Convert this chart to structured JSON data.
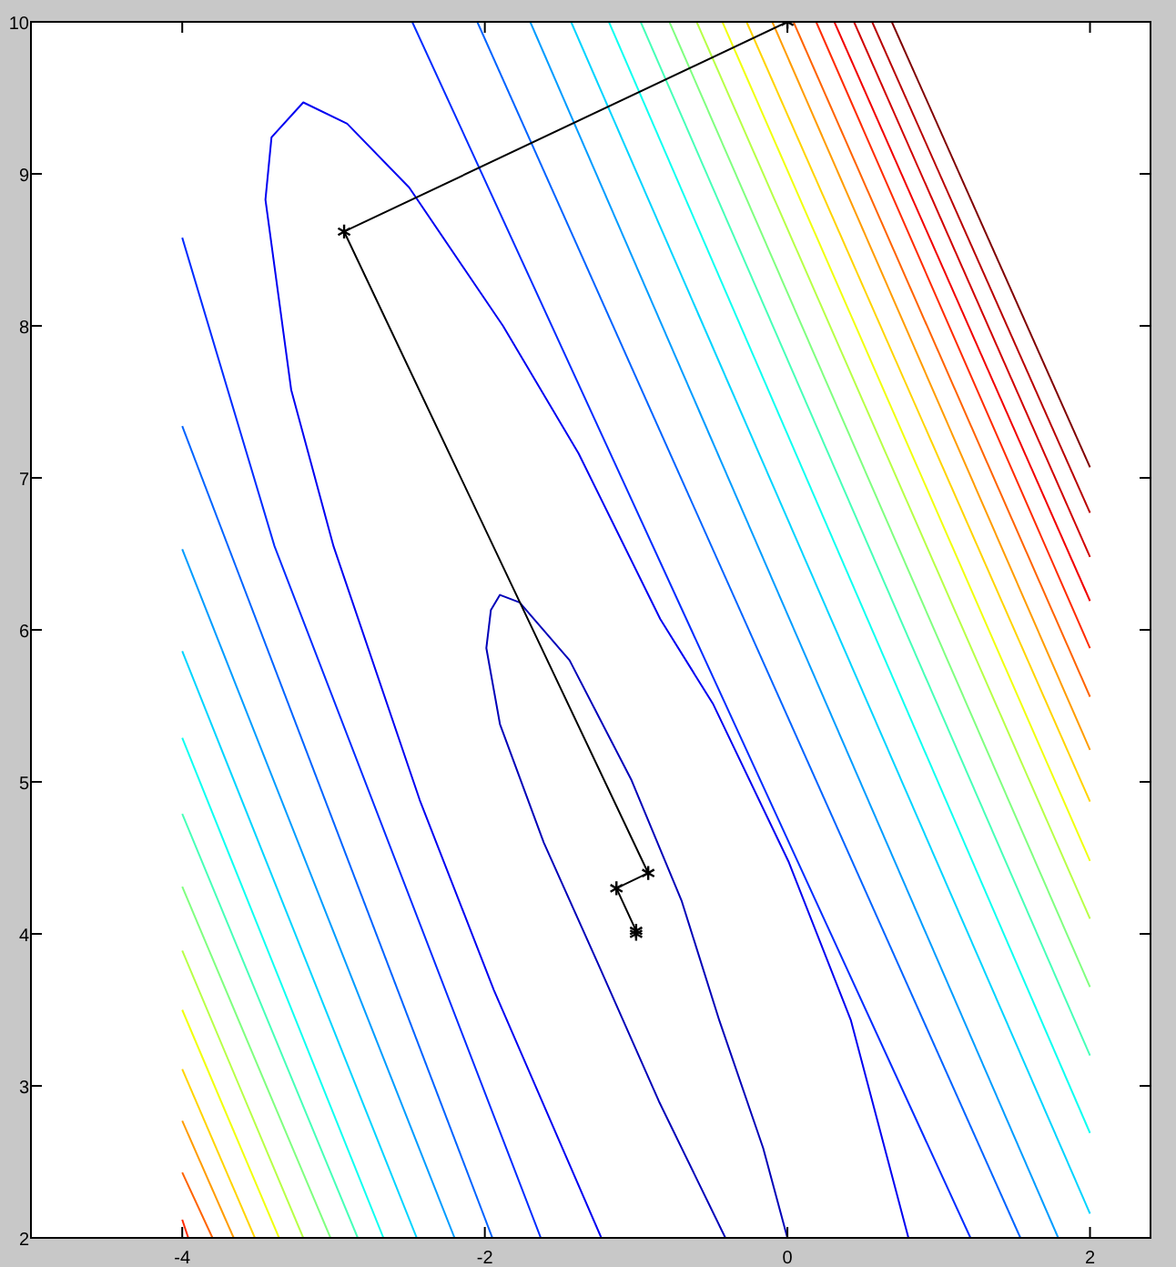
{
  "chart_data": {
    "type": "line",
    "xlim": [
      -5,
      2.4
    ],
    "ylim": [
      2,
      10
    ],
    "xticks": [
      -4,
      -2,
      0,
      2
    ],
    "yticks": [
      2,
      3,
      4,
      5,
      6,
      7,
      8,
      9,
      10
    ],
    "grid": false,
    "series": [
      {
        "color": "#0000b8",
        "marker": "none",
        "x": [
          -0.41,
          -0.85,
          -1.25,
          -1.61,
          -1.9,
          -1.99,
          -1.96,
          -1.9,
          -1.77,
          -1.44,
          -1.03,
          -0.7,
          -0.45,
          -0.16,
          0
        ],
        "values": [
          2,
          2.9,
          3.8,
          4.6,
          5.38,
          5.88,
          6.13,
          6.23,
          6.18,
          5.8,
          5.01,
          4.22,
          3.43,
          2.59,
          2
        ]
      },
      {
        "color": "#0000f1",
        "marker": "none",
        "x": [
          -1.23,
          -1.94,
          -2.43,
          -3.0,
          -3.28,
          -3.45,
          -3.41,
          -3.2,
          -2.91,
          -2.5,
          -1.88,
          -1.38,
          -0.84,
          -0.49,
          0.01,
          0.42,
          0.8
        ],
        "values": [
          2,
          3.63,
          4.88,
          6.55,
          7.58,
          8.83,
          9.24,
          9.47,
          9.33,
          8.91,
          8.0,
          7.16,
          6.07,
          5.51,
          4.47,
          3.43,
          2
        ]
      },
      {
        "color": "#002bff",
        "marker": "none",
        "x": [
          -4,
          -3.39,
          -1.63
        ],
        "values": [
          8.58,
          6.55,
          2
        ]
      },
      {
        "color": "#0063ff",
        "marker": "none",
        "x": [
          -4,
          -1.95
        ],
        "values": [
          7.34,
          2
        ]
      },
      {
        "color": "#009cff",
        "marker": "none",
        "x": [
          -4,
          -2.2
        ],
        "values": [
          6.53,
          2
        ]
      },
      {
        "color": "#00d4ff",
        "marker": "none",
        "x": [
          -4,
          -2.45
        ],
        "values": [
          5.86,
          2
        ]
      },
      {
        "color": "#0efff1",
        "marker": "none",
        "x": [
          -4,
          -2.67
        ],
        "values": [
          5.29,
          2
        ]
      },
      {
        "color": "#47ffb8",
        "marker": "none",
        "x": [
          -4,
          -2.84
        ],
        "values": [
          4.79,
          2
        ]
      },
      {
        "color": "#80ff80",
        "marker": "none",
        "x": [
          -4,
          -3.02
        ],
        "values": [
          4.31,
          2
        ]
      },
      {
        "color": "#b8ff47",
        "marker": "none",
        "x": [
          -4,
          -3.2
        ],
        "values": [
          3.89,
          2
        ]
      },
      {
        "color": "#f1ff0e",
        "marker": "none",
        "x": [
          -4,
          -3.36
        ],
        "values": [
          3.5,
          2
        ]
      },
      {
        "color": "#ffd400",
        "marker": "none",
        "x": [
          -4,
          -3.52
        ],
        "values": [
          3.11,
          2
        ]
      },
      {
        "color": "#ff9c00",
        "marker": "none",
        "x": [
          -4,
          -3.66
        ],
        "values": [
          2.77,
          2
        ]
      },
      {
        "color": "#ff6300",
        "marker": "none",
        "x": [
          -4,
          -3.8
        ],
        "values": [
          2.43,
          2
        ]
      },
      {
        "color": "#ff2b00",
        "marker": "none",
        "x": [
          -4,
          -3.96
        ],
        "values": [
          2.12,
          2
        ]
      },
      {
        "color": "#002bff",
        "marker": "none",
        "x": [
          -2.48,
          1.21
        ],
        "values": [
          10,
          2
        ]
      },
      {
        "color": "#0063ff",
        "marker": "none",
        "x": [
          -2.05,
          1.54
        ],
        "values": [
          10,
          2
        ]
      },
      {
        "color": "#009cff",
        "marker": "none",
        "x": [
          -1.7,
          1.79
        ],
        "values": [
          10,
          2
        ]
      },
      {
        "color": "#00d4ff",
        "marker": "none",
        "x": [
          -1.43,
          2
        ],
        "values": [
          10,
          2.16
        ]
      },
      {
        "color": "#0efff1",
        "marker": "none",
        "x": [
          -1.18,
          2
        ],
        "values": [
          10,
          2.69
        ]
      },
      {
        "color": "#47ffb8",
        "marker": "none",
        "x": [
          -0.97,
          2
        ],
        "values": [
          10,
          3.2
        ]
      },
      {
        "color": "#80ff80",
        "marker": "none",
        "x": [
          -0.78,
          2
        ],
        "values": [
          10,
          3.65
        ]
      },
      {
        "color": "#b8ff47",
        "marker": "none",
        "x": [
          -0.6,
          2
        ],
        "values": [
          10,
          4.1
        ]
      },
      {
        "color": "#f1ff0e",
        "marker": "none",
        "x": [
          -0.43,
          2
        ],
        "values": [
          10,
          4.48
        ]
      },
      {
        "color": "#ffd400",
        "marker": "none",
        "x": [
          -0.27,
          2
        ],
        "values": [
          10,
          4.87
        ]
      },
      {
        "color": "#ff9c00",
        "marker": "none",
        "x": [
          -0.1,
          2
        ],
        "values": [
          10,
          5.21
        ]
      },
      {
        "color": "#ff6300",
        "marker": "none",
        "x": [
          0.04,
          2
        ],
        "values": [
          10,
          5.56
        ]
      },
      {
        "color": "#ff2b00",
        "marker": "none",
        "x": [
          0.19,
          2
        ],
        "values": [
          10,
          5.88
        ]
      },
      {
        "color": "#f10000",
        "marker": "none",
        "x": [
          0.31,
          2
        ],
        "values": [
          10,
          6.19
        ]
      },
      {
        "color": "#d00000",
        "marker": "none",
        "x": [
          0.44,
          2
        ],
        "values": [
          10,
          6.48
        ]
      },
      {
        "color": "#b80000",
        "marker": "none",
        "x": [
          0.56,
          2
        ],
        "values": [
          10,
          6.77
        ]
      },
      {
        "color": "#800000",
        "marker": "none",
        "x": [
          0.69,
          2
        ],
        "values": [
          10,
          7.07
        ]
      },
      {
        "color": "#000000",
        "marker": "cross",
        "x": [
          0,
          -2.93,
          -0.92,
          -1.13,
          -1.0,
          -1.0
        ],
        "values": [
          10,
          8.62,
          4.4,
          4.3,
          4.02,
          4.0
        ]
      }
    ]
  }
}
